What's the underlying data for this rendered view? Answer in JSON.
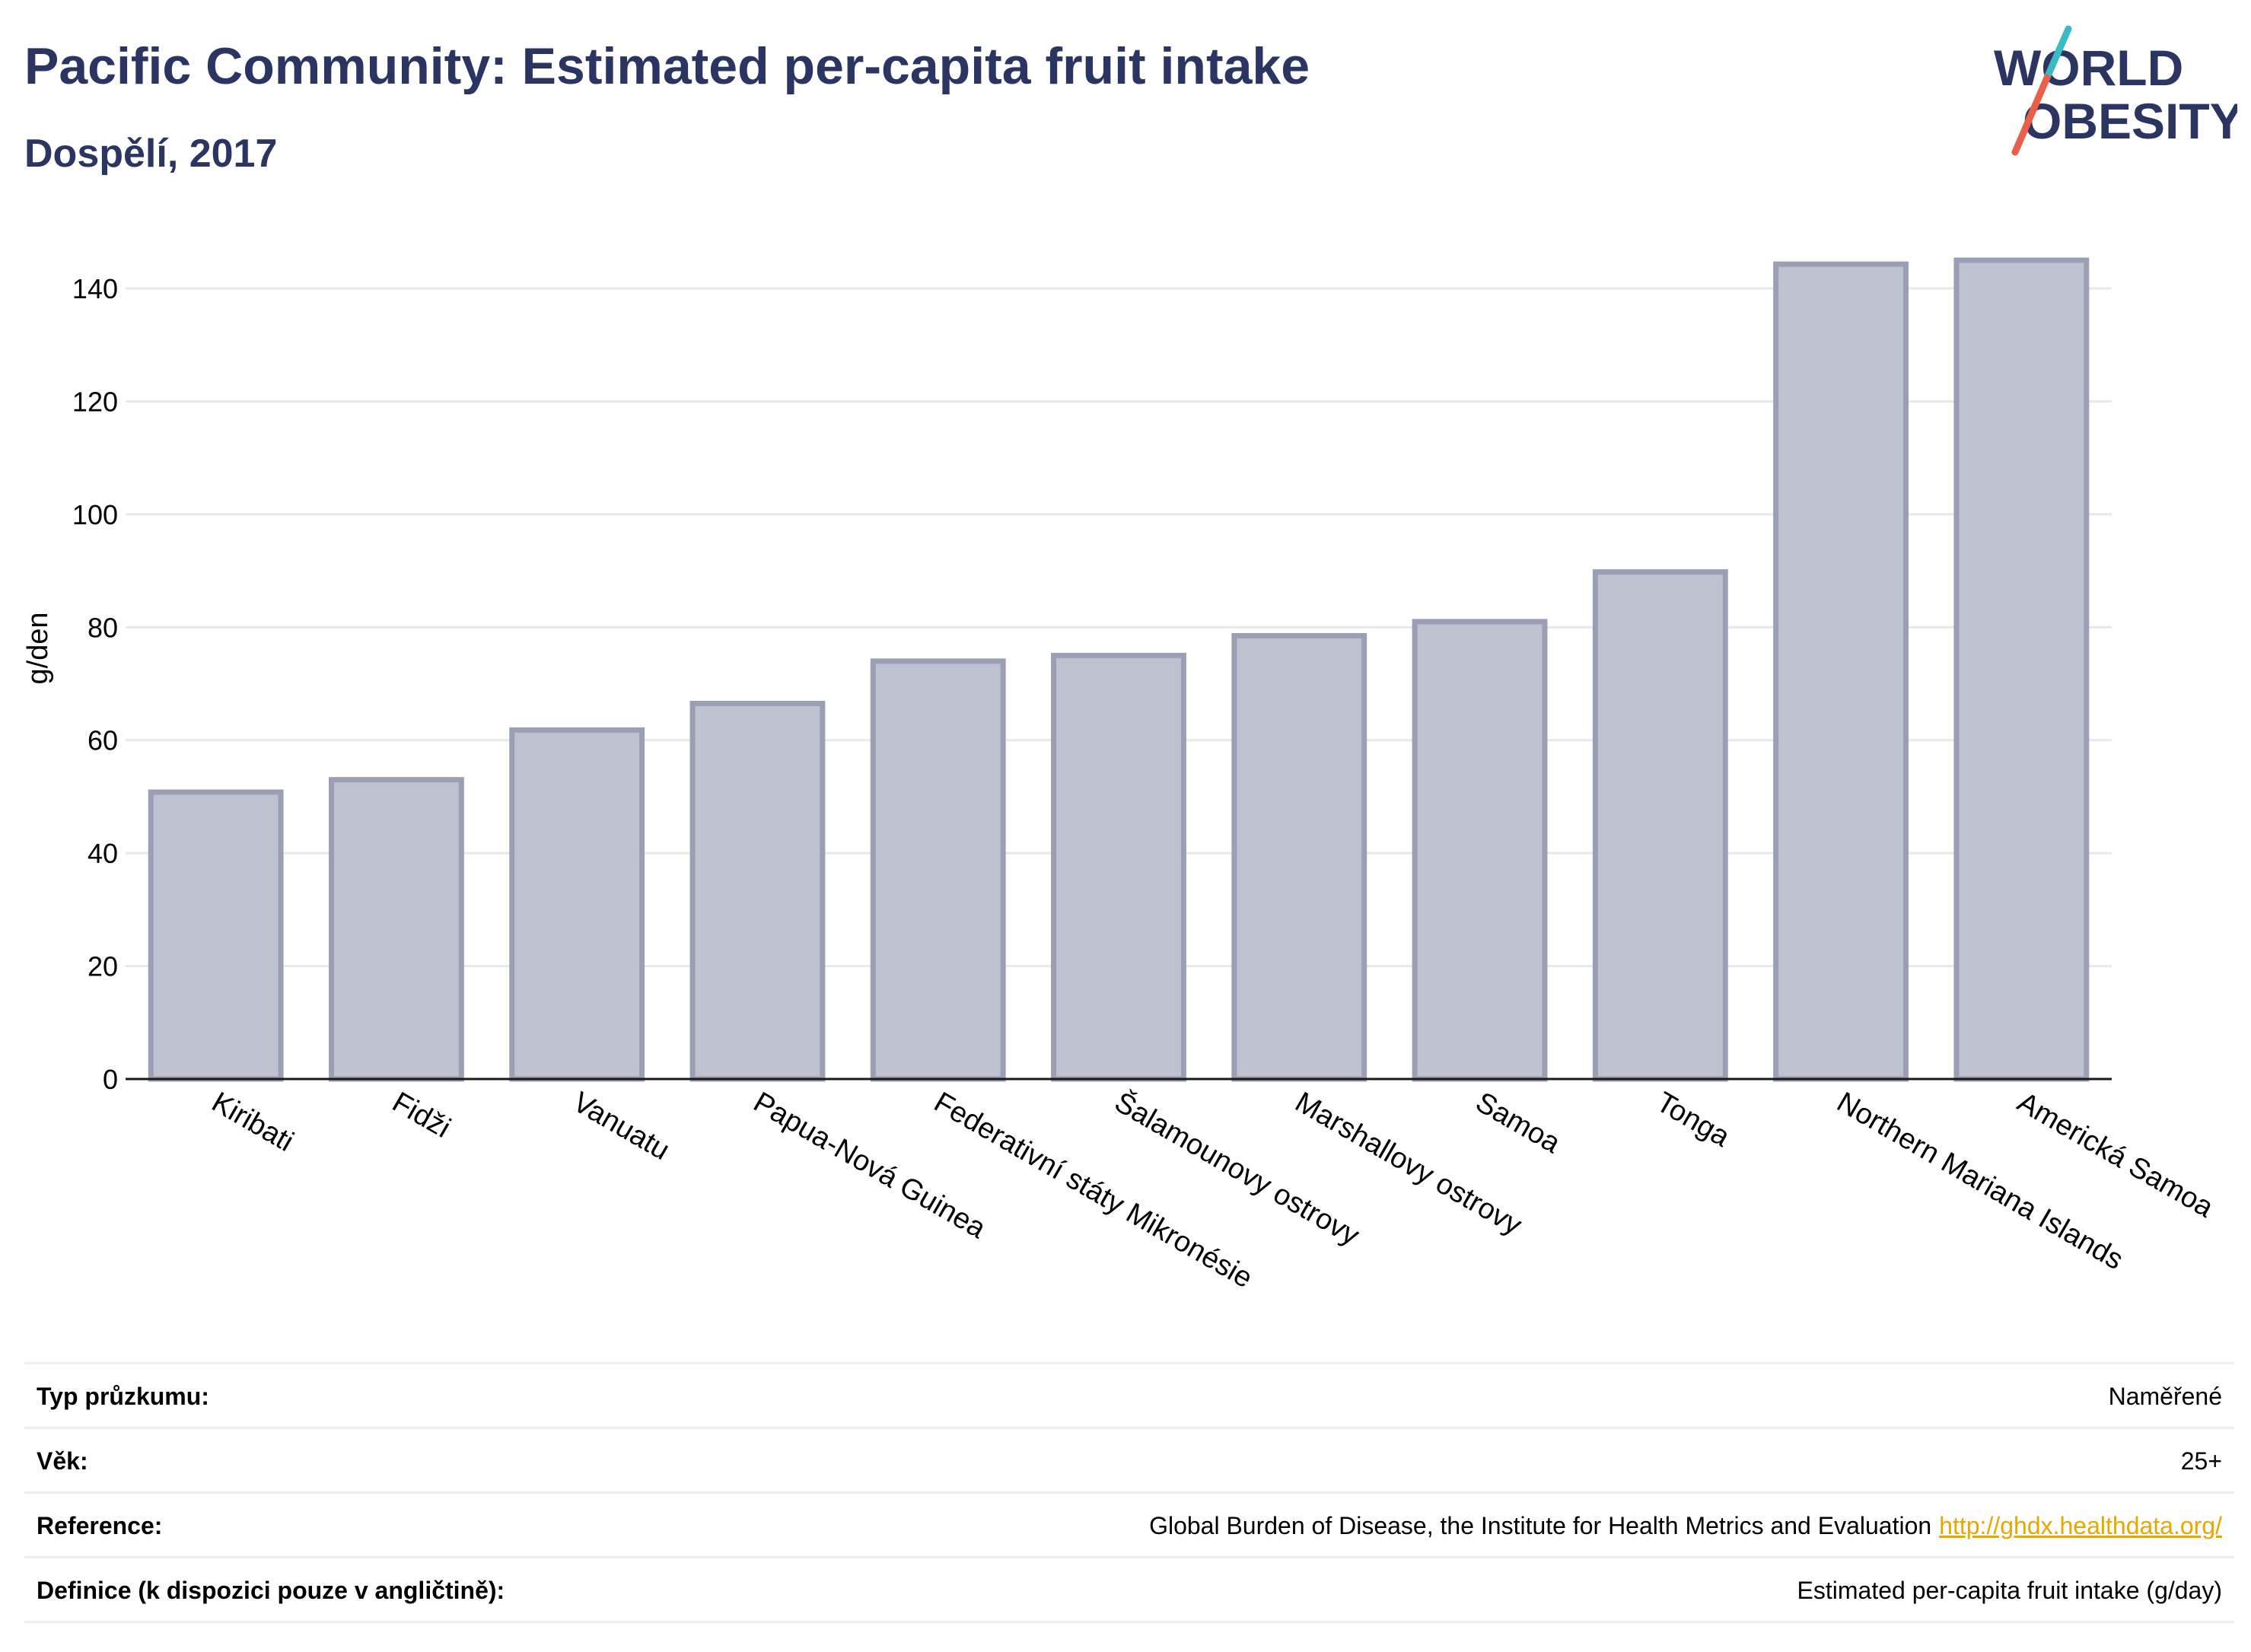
{
  "header": {
    "title": "Pacific Community: Estimated per-capita fruit intake",
    "subtitle": "Dospělí, 2017"
  },
  "logo": {
    "line1": "WORLD",
    "line2": "OBESITY",
    "colors": {
      "text": "#2b3562",
      "slash_teal": "#3bb9c4",
      "slash_red": "#e8604c"
    }
  },
  "chart_data": {
    "type": "bar",
    "categories": [
      "Kiribati",
      "Fidži",
      "Vanuatu",
      "Papua-Nová Guinea",
      "Federativní státy Mikronésie",
      "Šalamounovy ostrovy",
      "Marshallovy ostrovy",
      "Samoa",
      "Tonga",
      "Northern Mariana Islands",
      "Americká Samoa"
    ],
    "values": [
      50.8,
      53.0,
      61.8,
      66.5,
      74.0,
      75.0,
      78.5,
      81.0,
      89.8,
      144.3,
      145.0
    ],
    "ylabel": "g/den",
    "ylim": [
      0,
      152
    ],
    "yticks": [
      0,
      20,
      40,
      60,
      80,
      100,
      120,
      140
    ],
    "grid": true,
    "colors": {
      "bar_fill": "#bec1ce",
      "bar_stroke": "#9a9fb6",
      "axis": "#1a1a1a",
      "grid": "#e6e8ec"
    }
  },
  "meta": [
    {
      "label": "Typ průzkumu:",
      "value": "Naměřené"
    },
    {
      "label": "Věk:",
      "value": "25+"
    },
    {
      "label": "Reference:",
      "value": "Global Burden of Disease, the Institute for Health Metrics and Evaluation",
      "link": "http://ghdx.healthdata.org/"
    },
    {
      "label": "Definice (k dispozici pouze v angličtině):",
      "value": "Estimated per-capita fruit intake (g/day)"
    }
  ]
}
